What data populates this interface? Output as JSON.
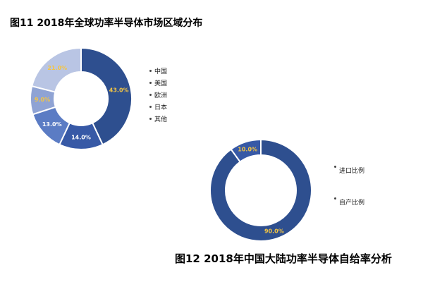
{
  "figure1": {
    "title": "图11 2018年全球功率半导体市场区域分布",
    "chart_data": {
      "type": "pie",
      "variant": "donut",
      "categories": [
        "中国",
        "美国",
        "欧洲",
        "日本",
        "其他"
      ],
      "values": [
        43.0,
        14.0,
        13.0,
        9.0,
        21.0
      ],
      "labels": [
        "43.0%",
        "14.0%",
        "13.0%",
        "9.0%",
        "21.0%"
      ],
      "colors": [
        "#2e4f8f",
        "#3759a6",
        "#5b7cc4",
        "#8fa3d4",
        "#b9c5e4"
      ],
      "label_colors": [
        "#f4c543",
        "#ffffff",
        "#ffffff",
        "#f4c543",
        "#f4c543"
      ],
      "legend_position": "right"
    }
  },
  "figure2": {
    "title": "图12 2018年中国大陆功率半导体自给率分析",
    "chart_data": {
      "type": "pie",
      "variant": "donut",
      "categories": [
        "进口比例",
        "自产比例"
      ],
      "values": [
        90.0,
        10.0
      ],
      "labels": [
        "90.0%",
        "10.0%"
      ],
      "colors": [
        "#2e4f8f",
        "#3759a6"
      ],
      "label_colors": [
        "#f4c543",
        "#f4c543"
      ],
      "legend_position": "right"
    }
  }
}
